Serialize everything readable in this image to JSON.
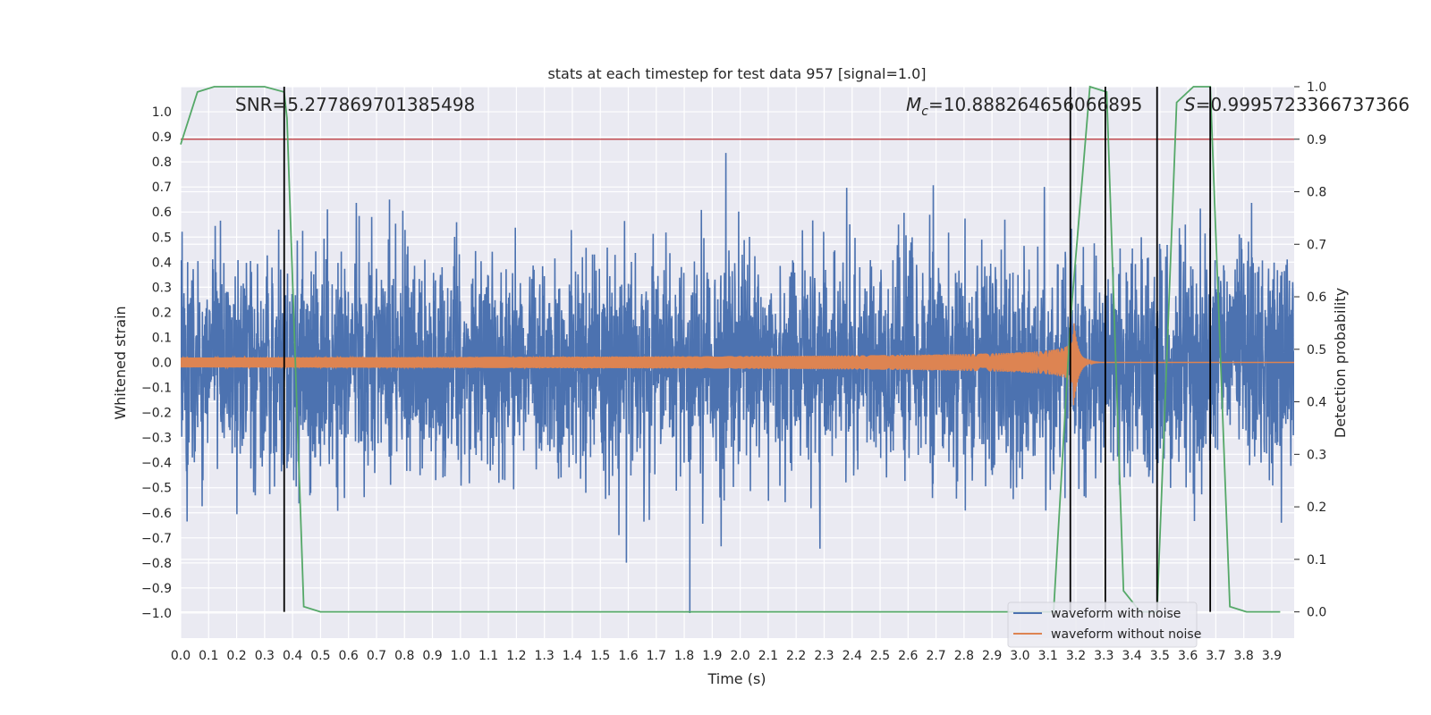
{
  "chart_data": {
    "type": "line",
    "title": "stats at each timestep for test data 957 [signal=1.0]",
    "xlabel": "Time (s)",
    "ylabel": "Whitened strain",
    "ylabel_right": "Detection probability",
    "xlim": [
      0.0,
      3.98
    ],
    "ylim": [
      -1.1,
      1.1
    ],
    "ylim_right": [
      -0.05,
      1.0
    ],
    "x_ticks": [
      0.0,
      0.1,
      0.2,
      0.3,
      0.4,
      0.5,
      0.6,
      0.7,
      0.8,
      0.9,
      1.0,
      1.1,
      1.2,
      1.3,
      1.4,
      1.5,
      1.6,
      1.7,
      1.8,
      1.9,
      2.0,
      2.1,
      2.2,
      2.3,
      2.4,
      2.5,
      2.6,
      2.7,
      2.8,
      2.9,
      3.0,
      3.1,
      3.2,
      3.3,
      3.4,
      3.5,
      3.6,
      3.7,
      3.8,
      3.9
    ],
    "x_tick_labels": [
      "0.0",
      "0.1",
      "0.2",
      "0.3",
      "0.4",
      "0.5",
      "0.6",
      "0.7",
      "0.8",
      "0.9",
      "1.0",
      "1.1",
      "1.2",
      "1.3",
      "1.4",
      "1.5",
      "1.6",
      "1.7",
      "1.8",
      "1.9",
      "2.0",
      "2.1",
      "2.2",
      "2.3",
      "2.4",
      "2.5",
      "2.6",
      "2.7",
      "2.8",
      "2.9",
      "3.0",
      "3.1",
      "3.2",
      "3.3",
      "3.4",
      "3.5",
      "3.6",
      "3.7",
      "3.8",
      "3.9"
    ],
    "y_ticks": [
      1.0,
      0.9,
      0.8,
      0.7,
      0.6,
      0.5,
      0.4,
      0.3,
      0.2,
      0.1,
      0.0,
      -0.1,
      -0.2,
      -0.3,
      -0.4,
      -0.5,
      -0.6,
      -0.7,
      -0.8,
      -0.9,
      -1.0
    ],
    "y_tick_labels": [
      "1.0",
      "0.9",
      "0.8",
      "0.7",
      "0.6",
      "0.5",
      "0.4",
      "0.3",
      "0.2",
      "0.1",
      "0.0",
      "−0.1",
      "−0.2",
      "−0.3",
      "−0.4",
      "−0.5",
      "−0.6",
      "−0.7",
      "−0.8",
      "−0.9",
      "−1.0"
    ],
    "y_right_ticks": [
      1.0,
      0.9,
      0.8,
      0.7,
      0.6,
      0.5,
      0.4,
      0.3,
      0.2,
      0.1,
      0.0
    ],
    "y_right_tick_labels": [
      "1.0",
      "0.9",
      "0.8",
      "0.7",
      "0.6",
      "0.5",
      "0.4",
      "0.3",
      "0.2",
      "0.1",
      "0.0"
    ],
    "annotations": {
      "snr": "SNR=5.277869701385498",
      "mc_symbol": "M",
      "mc_sub": "c",
      "mc_value": "=10.888264656066895",
      "s_symbol": "S",
      "s_value": "=0.9995723366737366"
    },
    "legend": {
      "position": "lower-right",
      "entries": [
        {
          "label": "waveform with noise",
          "color": "#4c72b0"
        },
        {
          "label": "waveform without noise",
          "color": "#dd8452"
        }
      ]
    },
    "threshold_right": 0.9,
    "threshold_color": "#c44e52",
    "vertical_lines_x": [
      0.37,
      3.18,
      3.305,
      3.49,
      3.68
    ],
    "vertical_line_color": "#000000",
    "series": [
      {
        "name": "waveform with noise",
        "axis": "left",
        "color": "#4c72b0",
        "kind": "noise",
        "sigma": 0.22,
        "peak_positive": 0.92,
        "peak_negative": -1.0
      },
      {
        "name": "waveform without noise",
        "axis": "left",
        "color": "#dd8452",
        "kind": "chirp",
        "start": 0.0,
        "merger": 3.19,
        "end": 3.98,
        "amplitude_start": 0.02,
        "amplitude_peak": 0.2
      },
      {
        "name": "Detection probability",
        "axis": "right",
        "color": "#55a868",
        "x": [
          0.0,
          0.06,
          0.12,
          0.18,
          0.24,
          0.3,
          0.37,
          0.38,
          0.44,
          0.5,
          0.56,
          0.62,
          0.7,
          0.8,
          0.9,
          1.0,
          1.1,
          1.2,
          1.3,
          1.4,
          1.5,
          1.6,
          1.7,
          1.8,
          1.9,
          2.0,
          2.1,
          2.2,
          2.3,
          2.4,
          2.5,
          2.6,
          2.7,
          2.8,
          2.9,
          3.0,
          3.1,
          3.12,
          3.18,
          3.25,
          3.31,
          3.37,
          3.43,
          3.49,
          3.56,
          3.62,
          3.68,
          3.75,
          3.81,
          3.87,
          3.93
        ],
        "values": [
          0.89,
          0.99,
          1.0,
          1.0,
          1.0,
          1.0,
          0.99,
          0.94,
          0.01,
          0.0,
          0.0,
          0.0,
          0.0,
          0.0,
          0.0,
          0.0,
          0.0,
          0.0,
          0.0,
          0.0,
          0.0,
          0.0,
          0.0,
          0.0,
          0.0,
          0.0,
          0.0,
          0.0,
          0.0,
          0.0,
          0.0,
          0.0,
          0.0,
          0.0,
          0.0,
          0.0,
          0.0,
          0.0,
          0.55,
          1.0,
          0.99,
          0.04,
          0.0,
          0.0,
          0.97,
          1.0,
          1.0,
          0.01,
          0.0,
          0.0,
          0.0
        ]
      }
    ]
  }
}
